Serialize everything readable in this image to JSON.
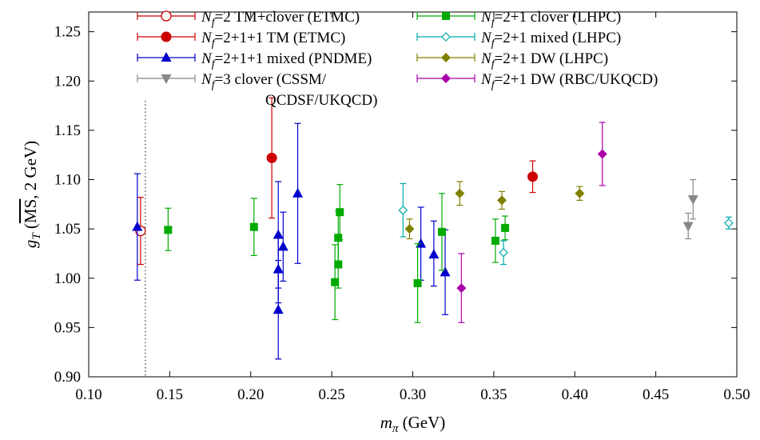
{
  "chart_data": {
    "type": "scatter",
    "xlabel": "m_π (GeV)",
    "ylabel": "g_T (MS, 2 GeV)",
    "ylabel_parts": {
      "main": "g",
      "sub": "T",
      "open": " (",
      "scheme": "MS",
      "rest": ", 2 GeV)"
    },
    "xlabel_parts": {
      "main": "m",
      "sub": "π",
      "rest": " (GeV)"
    },
    "xlim": [
      0.1,
      0.5
    ],
    "ylim": [
      0.9,
      1.27
    ],
    "xticks": [
      "0.10",
      "0.15",
      "0.20",
      "0.25",
      "0.30",
      "0.35",
      "0.40",
      "0.45",
      "0.50"
    ],
    "yticks": [
      "0.90",
      "0.95",
      "1.00",
      "1.05",
      "1.10",
      "1.15",
      "1.20",
      "1.25"
    ],
    "grid": false,
    "physical_pion_mass_line": 0.135,
    "legend_position": "top",
    "series": [
      {
        "name": "=2 TM+clover (ETMC)",
        "nf": "N",
        "nf_sub": "f",
        "color": "#cc0000",
        "marker": "circle-open",
        "points": [
          {
            "x": 0.132,
            "y": 1.048,
            "lo": 1.014,
            "hi": 1.082
          }
        ]
      },
      {
        "name": "=2+1+1 TM (ETMC)",
        "nf": "N",
        "nf_sub": "f",
        "color": "#cc0000",
        "marker": "circle",
        "points": [
          {
            "x": 0.213,
            "y": 1.122,
            "lo": 1.061,
            "hi": 1.183
          },
          {
            "x": 0.374,
            "y": 1.103,
            "lo": 1.087,
            "hi": 1.119
          }
        ]
      },
      {
        "name": "=2+1+1 mixed (PNDME)",
        "nf": "N",
        "nf_sub": "f",
        "color": "#0000cc",
        "marker": "triangle-up",
        "points": [
          {
            "x": 0.13,
            "y": 1.052,
            "lo": 0.998,
            "hi": 1.106
          },
          {
            "x": 0.217,
            "y": 1.044,
            "lo": 0.99,
            "hi": 1.098
          },
          {
            "x": 0.217,
            "y": 1.009,
            "lo": 0.975,
            "hi": 1.043
          },
          {
            "x": 0.217,
            "y": 0.968,
            "lo": 0.918,
            "hi": 1.018
          },
          {
            "x": 0.22,
            "y": 1.032,
            "lo": 0.997,
            "hi": 1.067
          },
          {
            "x": 0.229,
            "y": 1.086,
            "lo": 1.015,
            "hi": 1.157
          },
          {
            "x": 0.305,
            "y": 1.035,
            "lo": 0.998,
            "hi": 1.072
          },
          {
            "x": 0.313,
            "y": 1.024,
            "lo": 0.992,
            "hi": 1.058
          },
          {
            "x": 0.32,
            "y": 1.006,
            "lo": 0.963,
            "hi": 1.049
          }
        ]
      },
      {
        "name": "=3 clover (CSSM/",
        "name_line2": "QCDSF/UKQCD)",
        "nf": "N",
        "nf_sub": "f",
        "color": "#888888",
        "marker": "triangle-down",
        "points": [
          {
            "x": 0.47,
            "y": 1.053,
            "lo": 1.04,
            "hi": 1.066
          },
          {
            "x": 0.473,
            "y": 1.08,
            "lo": 1.06,
            "hi": 1.1
          }
        ]
      },
      {
        "name": "=2+1 clover (LHPC)",
        "nf": "N",
        "nf_sub": "f",
        "color": "#00aa00",
        "marker": "square",
        "points": [
          {
            "x": 0.149,
            "y": 1.049,
            "lo": 1.028,
            "hi": 1.071
          },
          {
            "x": 0.202,
            "y": 1.052,
            "lo": 1.023,
            "hi": 1.081
          },
          {
            "x": 0.252,
            "y": 0.996,
            "lo": 0.958,
            "hi": 1.034
          },
          {
            "x": 0.254,
            "y": 1.014,
            "lo": 0.99,
            "hi": 1.038
          },
          {
            "x": 0.254,
            "y": 1.041,
            "lo": 1.014,
            "hi": 1.068
          },
          {
            "x": 0.255,
            "y": 1.067,
            "lo": 1.039,
            "hi": 1.095
          },
          {
            "x": 0.303,
            "y": 0.995,
            "lo": 0.955,
            "hi": 1.035
          },
          {
            "x": 0.318,
            "y": 1.047,
            "lo": 1.008,
            "hi": 1.086
          },
          {
            "x": 0.351,
            "y": 1.038,
            "lo": 1.016,
            "hi": 1.06
          },
          {
            "x": 0.357,
            "y": 1.051,
            "lo": 1.039,
            "hi": 1.063
          }
        ]
      },
      {
        "name": "=2+1 mixed (LHPC)",
        "nf": "N",
        "nf_sub": "f",
        "color": "#00aaaa",
        "marker": "diamond-open",
        "points": [
          {
            "x": 0.294,
            "y": 1.069,
            "lo": 1.042,
            "hi": 1.096
          },
          {
            "x": 0.356,
            "y": 1.026,
            "lo": 1.014,
            "hi": 1.038
          },
          {
            "x": 0.495,
            "y": 1.056,
            "lo": 1.05,
            "hi": 1.062
          }
        ]
      },
      {
        "name": "=2+1 DW (LHPC)",
        "nf": "N",
        "nf_sub": "f",
        "color": "#808000",
        "marker": "diamond",
        "points": [
          {
            "x": 0.298,
            "y": 1.05,
            "lo": 1.04,
            "hi": 1.06
          },
          {
            "x": 0.329,
            "y": 1.086,
            "lo": 1.074,
            "hi": 1.098
          },
          {
            "x": 0.355,
            "y": 1.079,
            "lo": 1.07,
            "hi": 1.088
          },
          {
            "x": 0.403,
            "y": 1.086,
            "lo": 1.079,
            "hi": 1.093
          }
        ]
      },
      {
        "name": "=2+1 DW (RBC/UKQCD)",
        "nf": "N",
        "nf_sub": "f",
        "color": "#aa00aa",
        "marker": "diamond",
        "points": [
          {
            "x": 0.33,
            "y": 0.99,
            "lo": 0.955,
            "hi": 1.025
          },
          {
            "x": 0.417,
            "y": 1.126,
            "lo": 1.094,
            "hi": 1.158
          }
        ]
      }
    ]
  }
}
